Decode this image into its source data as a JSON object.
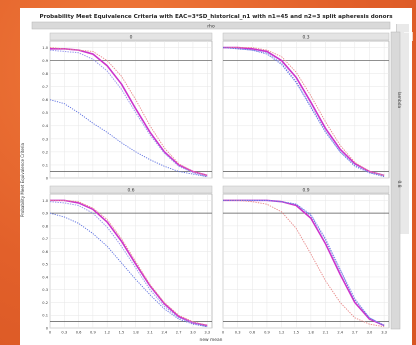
{
  "chart_data": {
    "type": "line",
    "title": "Probability Meet Equivalence Criteria with EAC=3*SD_historical_n1 with n1=45 and n2=3 split apheresis donors",
    "column_strip_label": "rho",
    "row_strip_label": "lambda",
    "xlabel": "new mean",
    "ylabel": "Probability Meet Equivalence Criteria",
    "x_ticks": [
      "0",
      "0.3",
      "0.6",
      "0.9",
      "1.2",
      "1.5",
      "1.8",
      "2.1",
      "2.4",
      "2.7",
      "3.0",
      "3.3"
    ],
    "y_ticks": [
      "0",
      "0.1",
      "0.2",
      "0.3",
      "0.4",
      "0.5",
      "0.6",
      "0.7",
      "0.8",
      "0.9",
      "1.0"
    ],
    "xlim": [
      0,
      3.4
    ],
    "ylim": [
      0,
      1.05
    ],
    "reference_lines": [
      0.05,
      0.9
    ],
    "grid": true,
    "row_value": "0.8",
    "series_colors": [
      "#cc33cc",
      "#9999ee",
      "#e88a8a",
      "#5a6ee0"
    ],
    "panels": [
      {
        "rho": "0",
        "x": [
          0,
          0.3,
          0.6,
          0.9,
          1.2,
          1.5,
          1.8,
          2.1,
          2.4,
          2.7,
          3.0,
          3.3
        ],
        "series": [
          {
            "values": [
              0.99,
              0.99,
              0.98,
              0.95,
              0.86,
              0.72,
              0.53,
              0.35,
              0.2,
              0.1,
              0.05,
              0.02
            ]
          },
          {
            "values": [
              0.98,
              0.97,
              0.96,
              0.91,
              0.82,
              0.68,
              0.5,
              0.33,
              0.19,
              0.09,
              0.04,
              0.01
            ]
          },
          {
            "values": [
              1.0,
              0.99,
              0.98,
              0.97,
              0.9,
              0.78,
              0.6,
              0.4,
              0.23,
              0.11,
              0.05,
              0.02
            ]
          },
          {
            "values": [
              0.6,
              0.57,
              0.5,
              0.42,
              0.35,
              0.27,
              0.2,
              0.14,
              0.09,
              0.05,
              0.03,
              0.01
            ]
          }
        ]
      },
      {
        "rho": "0.3",
        "x": [
          0,
          0.3,
          0.6,
          0.9,
          1.2,
          1.5,
          1.8,
          2.1,
          2.4,
          2.7,
          3.0,
          3.3
        ],
        "series": [
          {
            "values": [
              1.0,
              1.0,
              0.99,
              0.97,
              0.9,
              0.77,
              0.58,
              0.38,
              0.22,
              0.11,
              0.05,
              0.02
            ]
          },
          {
            "values": [
              1.0,
              0.99,
              0.98,
              0.96,
              0.88,
              0.74,
              0.55,
              0.36,
              0.2,
              0.1,
              0.04,
              0.02
            ]
          },
          {
            "values": [
              1.0,
              1.0,
              1.0,
              0.98,
              0.93,
              0.81,
              0.63,
              0.43,
              0.25,
              0.12,
              0.05,
              0.02
            ]
          },
          {
            "values": [
              1.0,
              0.99,
              0.98,
              0.95,
              0.87,
              0.73,
              0.54,
              0.35,
              0.2,
              0.09,
              0.04,
              0.01
            ]
          }
        ]
      },
      {
        "rho": "0.6",
        "x": [
          0,
          0.3,
          0.6,
          0.9,
          1.2,
          1.5,
          1.8,
          2.1,
          2.4,
          2.7,
          3.0,
          3.3
        ],
        "series": [
          {
            "values": [
              1.0,
              1.0,
              0.98,
              0.93,
              0.83,
              0.68,
              0.5,
              0.33,
              0.19,
              0.09,
              0.04,
              0.02
            ]
          },
          {
            "values": [
              0.99,
              0.98,
              0.96,
              0.9,
              0.79,
              0.64,
              0.47,
              0.3,
              0.17,
              0.08,
              0.04,
              0.01
            ]
          },
          {
            "values": [
              1.0,
              1.0,
              0.99,
              0.94,
              0.85,
              0.7,
              0.52,
              0.34,
              0.2,
              0.1,
              0.05,
              0.02
            ]
          },
          {
            "values": [
              0.9,
              0.87,
              0.82,
              0.74,
              0.64,
              0.51,
              0.38,
              0.26,
              0.15,
              0.07,
              0.03,
              0.01
            ]
          }
        ]
      },
      {
        "rho": "0.9",
        "x": [
          0,
          0.3,
          0.6,
          0.9,
          1.2,
          1.5,
          1.8,
          2.1,
          2.4,
          2.7,
          3.0,
          3.3
        ],
        "series": [
          {
            "values": [
              1.0,
              1.0,
              1.0,
              1.0,
              0.99,
              0.96,
              0.86,
              0.66,
              0.42,
              0.2,
              0.07,
              0.02
            ]
          },
          {
            "values": [
              1.0,
              1.0,
              1.0,
              1.0,
              0.99,
              0.97,
              0.89,
              0.7,
              0.46,
              0.23,
              0.08,
              0.02
            ]
          },
          {
            "values": [
              1.0,
              1.0,
              0.99,
              0.97,
              0.91,
              0.78,
              0.58,
              0.37,
              0.2,
              0.08,
              0.03,
              0.01
            ]
          },
          {
            "values": [
              1.0,
              1.0,
              1.0,
              1.0,
              0.99,
              0.97,
              0.88,
              0.69,
              0.45,
              0.22,
              0.08,
              0.02
            ]
          }
        ]
      }
    ]
  }
}
